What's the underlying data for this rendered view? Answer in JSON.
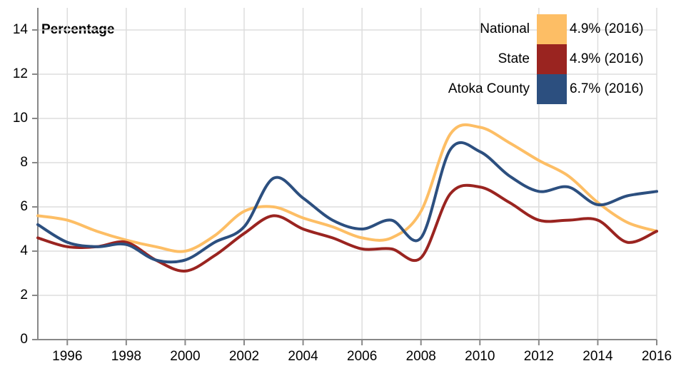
{
  "chart_data": {
    "type": "line",
    "title": "Percentage",
    "x": [
      1995,
      1996,
      1997,
      1998,
      1999,
      2000,
      2001,
      2002,
      2003,
      2004,
      2005,
      2006,
      2007,
      2008,
      2009,
      2010,
      2011,
      2012,
      2013,
      2014,
      2015,
      2016
    ],
    "xlim": [
      1995,
      2016
    ],
    "xticks": [
      1996,
      1998,
      2000,
      2002,
      2004,
      2006,
      2008,
      2010,
      2012,
      2014,
      2016
    ],
    "ylim": [
      0,
      15
    ],
    "yticks": [
      0,
      2,
      4,
      6,
      8,
      10,
      12,
      14
    ],
    "grid": true,
    "legend": "top-right",
    "series": [
      {
        "name": "National",
        "color": "#fdbe65",
        "label": "4.9% (2016)",
        "values": [
          5.6,
          5.4,
          4.9,
          4.5,
          4.2,
          4.0,
          4.7,
          5.8,
          6.0,
          5.5,
          5.1,
          4.6,
          4.6,
          5.8,
          9.3,
          9.6,
          8.9,
          8.1,
          7.4,
          6.2,
          5.3,
          4.9
        ]
      },
      {
        "name": "State",
        "color": "#9a2420",
        "label": "4.9% (2016)",
        "values": [
          4.6,
          4.2,
          4.2,
          4.4,
          3.6,
          3.1,
          3.8,
          4.8,
          5.6,
          5.0,
          4.6,
          4.1,
          4.1,
          3.7,
          6.6,
          6.9,
          6.2,
          5.4,
          5.4,
          5.4,
          4.4,
          4.9
        ]
      },
      {
        "name": "Atoka County",
        "color": "#2c4f7f",
        "label": "6.7% (2016)",
        "values": [
          5.2,
          4.4,
          4.2,
          4.3,
          3.6,
          3.6,
          4.4,
          5.1,
          7.3,
          6.4,
          5.4,
          5.0,
          5.4,
          4.6,
          8.6,
          8.5,
          7.4,
          6.7,
          6.9,
          6.1,
          6.5,
          6.7
        ]
      }
    ]
  }
}
